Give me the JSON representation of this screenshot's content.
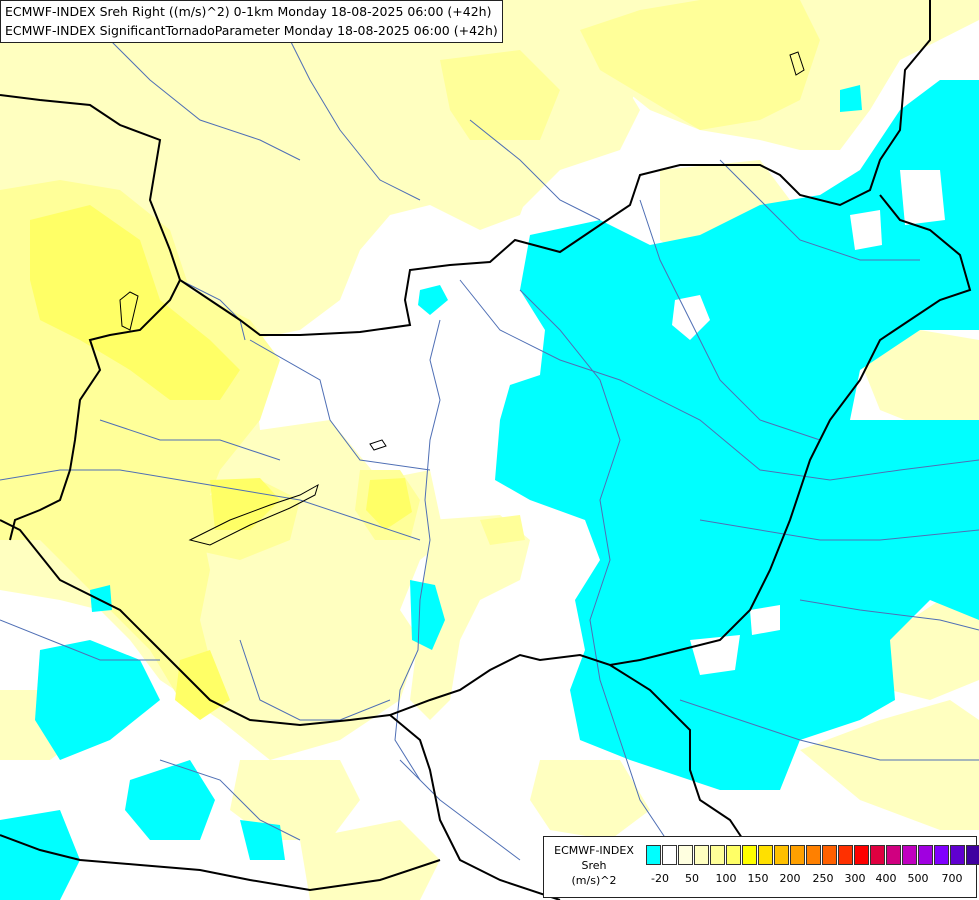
{
  "header": {
    "line1": "ECMWF-INDEX Sreh Right ((m/s)^2) 0-1km Monday 18-08-2025 06:00 (+42h)",
    "line2": "ECMWF-INDEX SignificantTornadoParameter Monday 18-08-2025 06:00 (+42h)"
  },
  "legend": {
    "title_line1": "ECMWF-INDEX",
    "title_line2": "Sreh",
    "title_line3": "(m/s)^2",
    "colors": [
      "#00ffff",
      "#ffffff",
      "#ffffe0",
      "#ffffc0",
      "#ffff99",
      "#ffff66",
      "#ffff00",
      "#ffe000",
      "#ffc000",
      "#ffa000",
      "#ff8000",
      "#ff6000",
      "#ff3000",
      "#ff0000",
      "#e00040",
      "#d00080",
      "#c000c0",
      "#a000e0",
      "#8000ff",
      "#6000d0",
      "#4000a0",
      "#000080"
    ],
    "ticks": [
      "-20",
      "50",
      "100",
      "150",
      "200",
      "250",
      "300",
      "400",
      "500",
      "700"
    ]
  },
  "map": {
    "colors": {
      "background": "#ffffff",
      "light_yellow": "#ffffc0",
      "mid_yellow": "#ffff99",
      "strong_yellow": "#ffff66",
      "cyan": "#00ffff",
      "river": "#4f6fb5",
      "border": "#000000"
    }
  }
}
